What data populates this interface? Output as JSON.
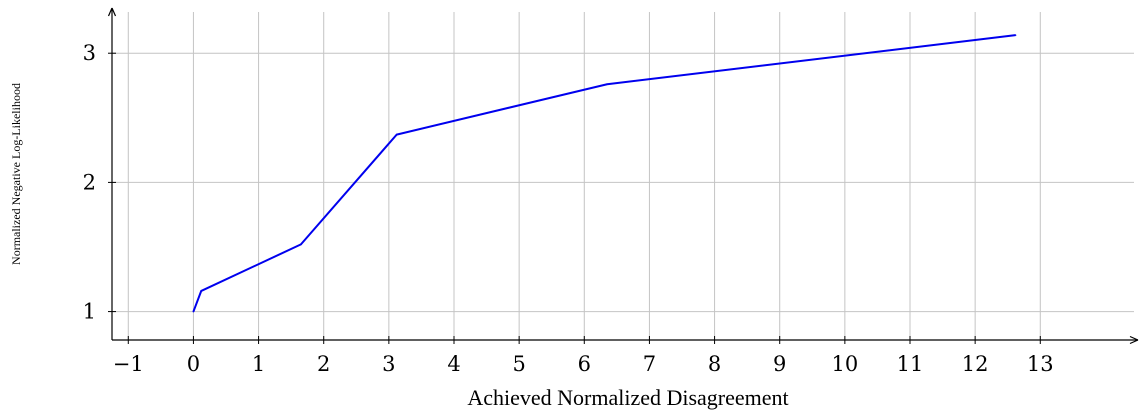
{
  "chart_data": {
    "type": "line",
    "title": "",
    "xlabel": "Achieved Normalized Disagreement",
    "ylabel": "Normalized Negative Log-Likelihood",
    "xlim": [
      -1.25,
      14.5
    ],
    "ylim": [
      0.78,
      3.35
    ],
    "x_ticks": [
      -1,
      0,
      1,
      2,
      3,
      4,
      5,
      6,
      7,
      8,
      9,
      10,
      11,
      12,
      13
    ],
    "x_tick_labels": [
      "−1",
      "0",
      "1",
      "2",
      "3",
      "4",
      "5",
      "6",
      "7",
      "8",
      "9",
      "10",
      "11",
      "12",
      "13"
    ],
    "y_ticks": [
      1,
      2,
      3
    ],
    "y_tick_labels": [
      "1",
      "2",
      "3"
    ],
    "grid": true,
    "series": [
      {
        "color": "#0000ee",
        "x": [
          0.0,
          0.12,
          1.65,
          3.12,
          6.35,
          12.62
        ],
        "y": [
          1.0,
          1.16,
          1.52,
          2.37,
          2.76,
          3.14
        ]
      }
    ]
  }
}
